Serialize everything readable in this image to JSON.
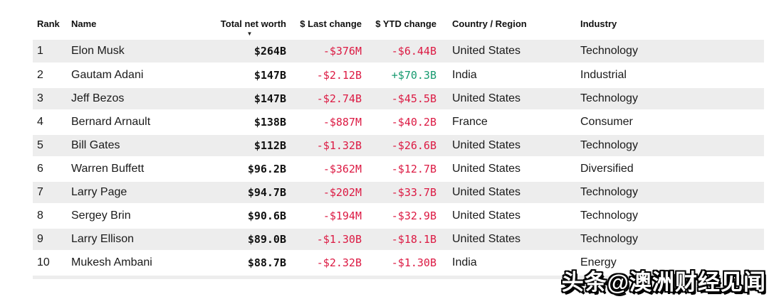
{
  "table": {
    "columns": [
      "Rank",
      "Name",
      "Total net worth",
      "$ Last change",
      "$ YTD change",
      "Country / Region",
      "Industry"
    ],
    "sorted_column": "Total net worth",
    "sort_direction": "descending",
    "sort_icon": "▼",
    "rows": [
      {
        "rank": "1",
        "name": "Elon Musk",
        "worth": "$264B",
        "last": "-$376M",
        "ytd": "-$6.44B",
        "country": "United States",
        "industry": "Technology"
      },
      {
        "rank": "2",
        "name": "Gautam Adani",
        "worth": "$147B",
        "last": "-$2.12B",
        "ytd": "+$70.3B",
        "country": "India",
        "industry": "Industrial"
      },
      {
        "rank": "3",
        "name": "Jeff Bezos",
        "worth": "$147B",
        "last": "-$2.74B",
        "ytd": "-$45.5B",
        "country": "United States",
        "industry": "Technology"
      },
      {
        "rank": "4",
        "name": "Bernard Arnault",
        "worth": "$138B",
        "last": "-$887M",
        "ytd": "-$40.2B",
        "country": "France",
        "industry": "Consumer"
      },
      {
        "rank": "5",
        "name": "Bill Gates",
        "worth": "$112B",
        "last": "-$1.32B",
        "ytd": "-$26.6B",
        "country": "United States",
        "industry": "Technology"
      },
      {
        "rank": "6",
        "name": "Warren Buffett",
        "worth": "$96.2B",
        "last": "-$362M",
        "ytd": "-$12.7B",
        "country": "United States",
        "industry": "Diversified"
      },
      {
        "rank": "7",
        "name": "Larry Page",
        "worth": "$94.7B",
        "last": "-$202M",
        "ytd": "-$33.7B",
        "country": "United States",
        "industry": "Technology"
      },
      {
        "rank": "8",
        "name": "Sergey Brin",
        "worth": "$90.6B",
        "last": "-$194M",
        "ytd": "-$32.9B",
        "country": "United States",
        "industry": "Technology"
      },
      {
        "rank": "9",
        "name": "Larry Ellison",
        "worth": "$89.0B",
        "last": "-$1.30B",
        "ytd": "-$18.1B",
        "country": "United States",
        "industry": "Technology"
      },
      {
        "rank": "10",
        "name": "Mukesh Ambani",
        "worth": "$88.7B",
        "last": "-$2.32B",
        "ytd": "-$1.30B",
        "country": "India",
        "industry": "Energy"
      }
    ]
  },
  "watermark": {
    "text": "头条@澳洲财经见闻"
  },
  "colors": {
    "negative": "#dc1a43",
    "positive": "#179a6f",
    "row_stripe": "#ededed",
    "text": "#1a1a1a"
  }
}
